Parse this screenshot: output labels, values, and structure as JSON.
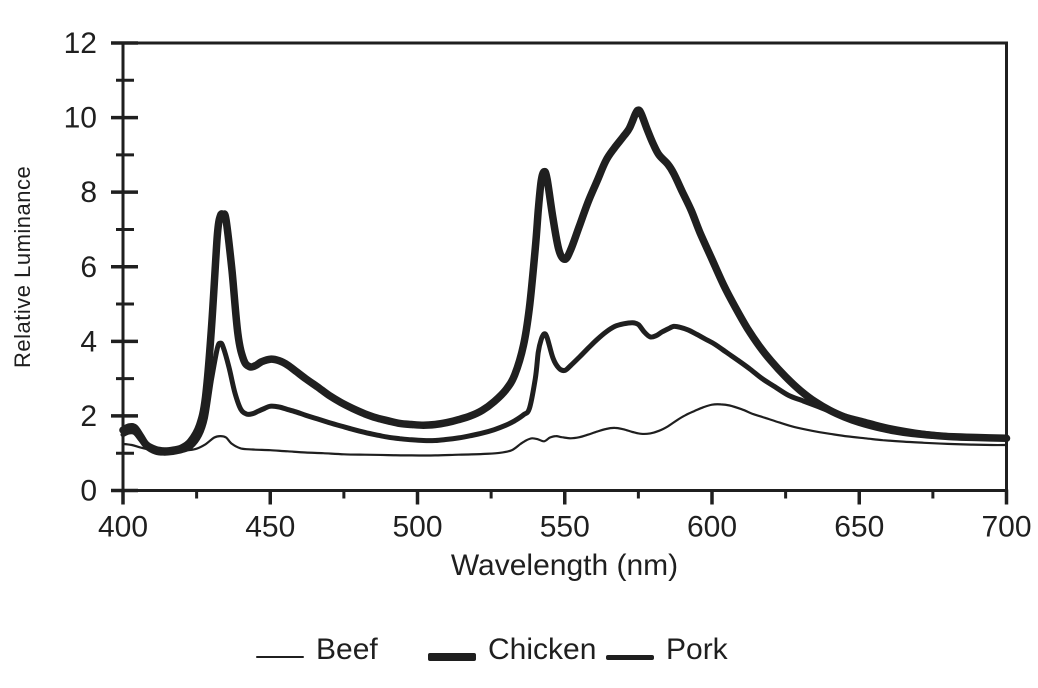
{
  "page": {
    "background": "#ffffff",
    "ink": "#1f1f1f"
  },
  "chart_data": {
    "type": "line",
    "title": "",
    "xlabel": "Wavelength (nm)",
    "ylabel": "Relative Luminance",
    "xlim": [
      400,
      700
    ],
    "ylim": [
      0,
      12
    ],
    "x_major_ticks": [
      400,
      450,
      500,
      550,
      600,
      650,
      700
    ],
    "x_minor_ticks": [
      425,
      475,
      525,
      575,
      625,
      675
    ],
    "y_major_ticks": [
      0,
      2,
      4,
      6,
      8,
      10,
      12
    ],
    "y_minor_ticks": [
      1,
      3,
      5,
      7,
      9,
      11
    ],
    "grid": false,
    "legend_position": "bottom",
    "series": [
      {
        "name": "Beef",
        "stroke_width": 2.2,
        "points": [
          [
            400,
            1.25
          ],
          [
            403,
            1.22
          ],
          [
            406,
            1.15
          ],
          [
            410,
            1.08
          ],
          [
            414,
            1.05
          ],
          [
            418,
            1.05
          ],
          [
            422,
            1.08
          ],
          [
            425,
            1.12
          ],
          [
            428,
            1.24
          ],
          [
            431,
            1.42
          ],
          [
            433,
            1.46
          ],
          [
            435,
            1.42
          ],
          [
            437,
            1.25
          ],
          [
            440,
            1.13
          ],
          [
            444,
            1.1
          ],
          [
            450,
            1.08
          ],
          [
            456,
            1.05
          ],
          [
            462,
            1.02
          ],
          [
            468,
            1.0
          ],
          [
            475,
            0.97
          ],
          [
            482,
            0.96
          ],
          [
            490,
            0.95
          ],
          [
            498,
            0.94
          ],
          [
            506,
            0.94
          ],
          [
            514,
            0.96
          ],
          [
            522,
            0.98
          ],
          [
            528,
            1.01
          ],
          [
            532,
            1.08
          ],
          [
            535,
            1.25
          ],
          [
            537,
            1.35
          ],
          [
            539,
            1.4
          ],
          [
            541,
            1.37
          ],
          [
            543,
            1.32
          ],
          [
            545,
            1.42
          ],
          [
            547,
            1.46
          ],
          [
            549,
            1.43
          ],
          [
            552,
            1.4
          ],
          [
            555,
            1.43
          ],
          [
            558,
            1.5
          ],
          [
            561,
            1.58
          ],
          [
            564,
            1.65
          ],
          [
            567,
            1.68
          ],
          [
            570,
            1.64
          ],
          [
            573,
            1.57
          ],
          [
            576,
            1.52
          ],
          [
            579,
            1.53
          ],
          [
            582,
            1.6
          ],
          [
            585,
            1.72
          ],
          [
            588,
            1.88
          ],
          [
            591,
            2.02
          ],
          [
            594,
            2.13
          ],
          [
            597,
            2.23
          ],
          [
            600,
            2.3
          ],
          [
            603,
            2.31
          ],
          [
            606,
            2.28
          ],
          [
            610,
            2.18
          ],
          [
            614,
            2.05
          ],
          [
            618,
            1.95
          ],
          [
            623,
            1.82
          ],
          [
            628,
            1.7
          ],
          [
            634,
            1.6
          ],
          [
            640,
            1.52
          ],
          [
            646,
            1.45
          ],
          [
            652,
            1.4
          ],
          [
            658,
            1.35
          ],
          [
            665,
            1.31
          ],
          [
            672,
            1.28
          ],
          [
            680,
            1.25
          ],
          [
            688,
            1.23
          ],
          [
            695,
            1.22
          ],
          [
            700,
            1.22
          ]
        ]
      },
      {
        "name": "Chicken",
        "stroke_width": 7.5,
        "points": [
          [
            400,
            1.62
          ],
          [
            402,
            1.7
          ],
          [
            404,
            1.68
          ],
          [
            406,
            1.45
          ],
          [
            408,
            1.22
          ],
          [
            411,
            1.1
          ],
          [
            414,
            1.06
          ],
          [
            417,
            1.08
          ],
          [
            420,
            1.14
          ],
          [
            423,
            1.32
          ],
          [
            426,
            1.75
          ],
          [
            428,
            2.5
          ],
          [
            430,
            4.3
          ],
          [
            432,
            6.8
          ],
          [
            433,
            7.35
          ],
          [
            434,
            7.4
          ],
          [
            435,
            7.25
          ],
          [
            437,
            5.9
          ],
          [
            439,
            4.2
          ],
          [
            441,
            3.5
          ],
          [
            443,
            3.32
          ],
          [
            445,
            3.35
          ],
          [
            447,
            3.45
          ],
          [
            450,
            3.52
          ],
          [
            453,
            3.48
          ],
          [
            456,
            3.36
          ],
          [
            459,
            3.18
          ],
          [
            462,
            3.0
          ],
          [
            466,
            2.78
          ],
          [
            470,
            2.55
          ],
          [
            474,
            2.36
          ],
          [
            478,
            2.2
          ],
          [
            482,
            2.06
          ],
          [
            486,
            1.95
          ],
          [
            490,
            1.87
          ],
          [
            494,
            1.8
          ],
          [
            498,
            1.77
          ],
          [
            502,
            1.75
          ],
          [
            506,
            1.77
          ],
          [
            510,
            1.82
          ],
          [
            514,
            1.9
          ],
          [
            518,
            2.0
          ],
          [
            522,
            2.15
          ],
          [
            526,
            2.38
          ],
          [
            530,
            2.7
          ],
          [
            533,
            3.1
          ],
          [
            536,
            3.9
          ],
          [
            538,
            4.9
          ],
          [
            540,
            6.5
          ],
          [
            541,
            7.5
          ],
          [
            542,
            8.3
          ],
          [
            543,
            8.55
          ],
          [
            544,
            8.35
          ],
          [
            546,
            7.3
          ],
          [
            548,
            6.45
          ],
          [
            550,
            6.2
          ],
          [
            552,
            6.45
          ],
          [
            555,
            7.1
          ],
          [
            558,
            7.75
          ],
          [
            561,
            8.3
          ],
          [
            564,
            8.85
          ],
          [
            567,
            9.2
          ],
          [
            570,
            9.5
          ],
          [
            572,
            9.72
          ],
          [
            574,
            10.1
          ],
          [
            575,
            10.2
          ],
          [
            576,
            10.1
          ],
          [
            578,
            9.68
          ],
          [
            580,
            9.3
          ],
          [
            582,
            9.0
          ],
          [
            585,
            8.75
          ],
          [
            587,
            8.5
          ],
          [
            590,
            8.0
          ],
          [
            593,
            7.5
          ],
          [
            596,
            6.9
          ],
          [
            600,
            6.2
          ],
          [
            604,
            5.5
          ],
          [
            608,
            4.9
          ],
          [
            612,
            4.35
          ],
          [
            616,
            3.88
          ],
          [
            620,
            3.48
          ],
          [
            625,
            3.05
          ],
          [
            630,
            2.68
          ],
          [
            635,
            2.38
          ],
          [
            640,
            2.15
          ],
          [
            645,
            1.97
          ],
          [
            650,
            1.83
          ],
          [
            656,
            1.7
          ],
          [
            662,
            1.6
          ],
          [
            668,
            1.53
          ],
          [
            675,
            1.48
          ],
          [
            682,
            1.44
          ],
          [
            690,
            1.42
          ],
          [
            700,
            1.4
          ]
        ]
      },
      {
        "name": "Pork",
        "stroke_width": 5,
        "points": [
          [
            400,
            1.5
          ],
          [
            402,
            1.57
          ],
          [
            404,
            1.55
          ],
          [
            406,
            1.36
          ],
          [
            408,
            1.16
          ],
          [
            411,
            1.03
          ],
          [
            414,
            1.0
          ],
          [
            417,
            1.02
          ],
          [
            420,
            1.07
          ],
          [
            423,
            1.17
          ],
          [
            426,
            1.48
          ],
          [
            428,
            1.95
          ],
          [
            430,
            2.95
          ],
          [
            432,
            3.8
          ],
          [
            433,
            3.95
          ],
          [
            434,
            3.85
          ],
          [
            436,
            3.3
          ],
          [
            438,
            2.62
          ],
          [
            440,
            2.18
          ],
          [
            442,
            2.05
          ],
          [
            444,
            2.06
          ],
          [
            446,
            2.13
          ],
          [
            448,
            2.2
          ],
          [
            450,
            2.26
          ],
          [
            453,
            2.24
          ],
          [
            456,
            2.17
          ],
          [
            459,
            2.1
          ],
          [
            462,
            2.02
          ],
          [
            466,
            1.92
          ],
          [
            470,
            1.82
          ],
          [
            474,
            1.73
          ],
          [
            478,
            1.64
          ],
          [
            482,
            1.56
          ],
          [
            486,
            1.49
          ],
          [
            490,
            1.43
          ],
          [
            494,
            1.39
          ],
          [
            498,
            1.36
          ],
          [
            502,
            1.34
          ],
          [
            506,
            1.34
          ],
          [
            510,
            1.37
          ],
          [
            514,
            1.41
          ],
          [
            518,
            1.47
          ],
          [
            522,
            1.54
          ],
          [
            526,
            1.63
          ],
          [
            530,
            1.75
          ],
          [
            533,
            1.87
          ],
          [
            536,
            2.03
          ],
          [
            538,
            2.2
          ],
          [
            540,
            3.0
          ],
          [
            541,
            3.7
          ],
          [
            542,
            4.05
          ],
          [
            543,
            4.2
          ],
          [
            544,
            4.1
          ],
          [
            546,
            3.55
          ],
          [
            548,
            3.28
          ],
          [
            550,
            3.22
          ],
          [
            552,
            3.35
          ],
          [
            555,
            3.58
          ],
          [
            558,
            3.82
          ],
          [
            561,
            4.05
          ],
          [
            564,
            4.25
          ],
          [
            567,
            4.4
          ],
          [
            570,
            4.47
          ],
          [
            573,
            4.5
          ],
          [
            575,
            4.45
          ],
          [
            577,
            4.25
          ],
          [
            579,
            4.12
          ],
          [
            581,
            4.15
          ],
          [
            583,
            4.25
          ],
          [
            585,
            4.33
          ],
          [
            587,
            4.4
          ],
          [
            589,
            4.38
          ],
          [
            592,
            4.3
          ],
          [
            595,
            4.18
          ],
          [
            598,
            4.05
          ],
          [
            601,
            3.92
          ],
          [
            605,
            3.7
          ],
          [
            609,
            3.48
          ],
          [
            613,
            3.25
          ],
          [
            617,
            3.0
          ],
          [
            621,
            2.8
          ],
          [
            626,
            2.55
          ],
          [
            631,
            2.4
          ],
          [
            636,
            2.25
          ],
          [
            641,
            2.1
          ],
          [
            646,
            1.98
          ],
          [
            651,
            1.88
          ],
          [
            657,
            1.75
          ],
          [
            663,
            1.65
          ],
          [
            669,
            1.57
          ],
          [
            675,
            1.51
          ],
          [
            681,
            1.47
          ],
          [
            688,
            1.43
          ],
          [
            694,
            1.41
          ],
          [
            700,
            1.4
          ]
        ]
      }
    ]
  }
}
